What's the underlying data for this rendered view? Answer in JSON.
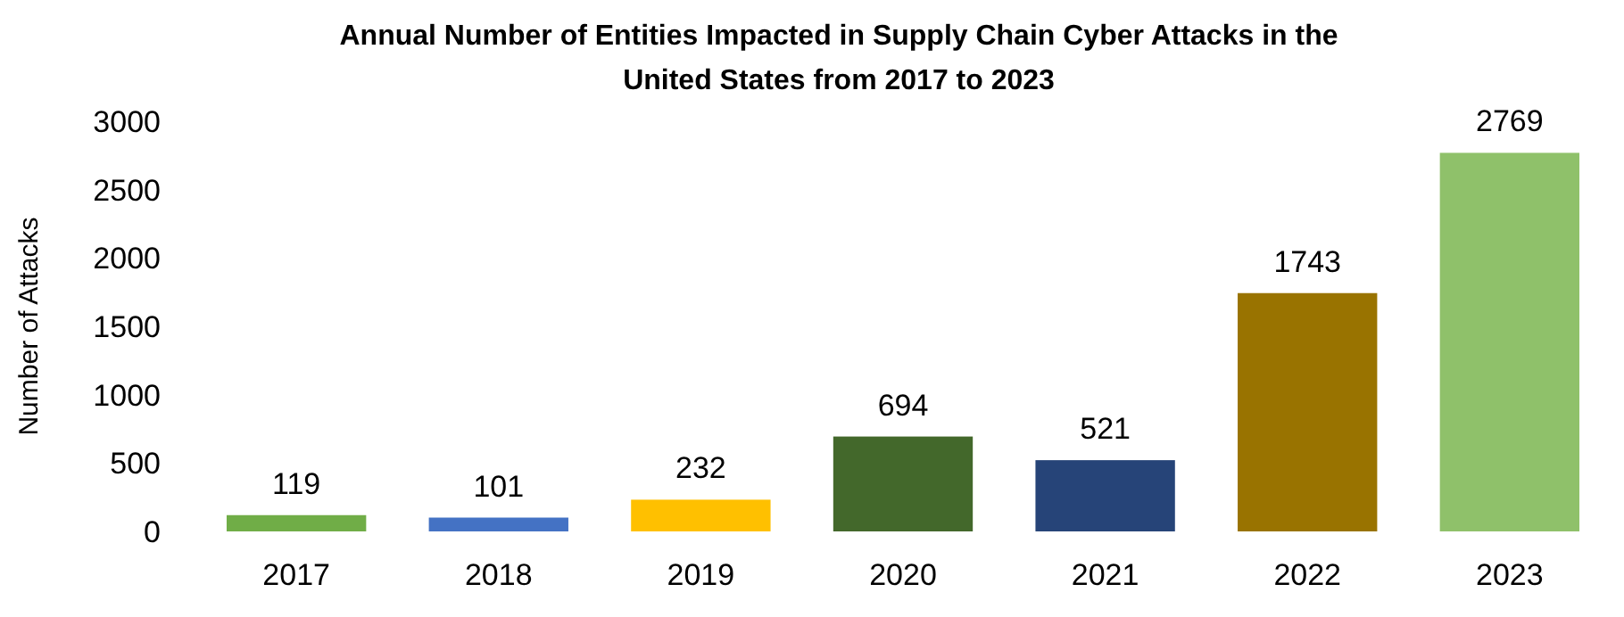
{
  "chart_data": {
    "type": "bar",
    "title": "Annual Number of Entities Impacted in Supply Chain Cyber Attacks in the United States from 2017 to 2023",
    "ylabel": "Number of Attacks",
    "categories": [
      "2017",
      "2018",
      "2019",
      "2020",
      "2021",
      "2022",
      "2023"
    ],
    "values": [
      119,
      101,
      232,
      694,
      521,
      1743,
      2769
    ],
    "colors": [
      "#70ad47",
      "#4472c4",
      "#ffc000",
      "#43682b",
      "#264478",
      "#997300",
      "#8fc16a"
    ],
    "ylim": [
      0,
      3000
    ],
    "yticks": [
      0,
      500,
      1000,
      1500,
      2000,
      2500,
      3000
    ],
    "data_labels": true,
    "grid": false
  }
}
